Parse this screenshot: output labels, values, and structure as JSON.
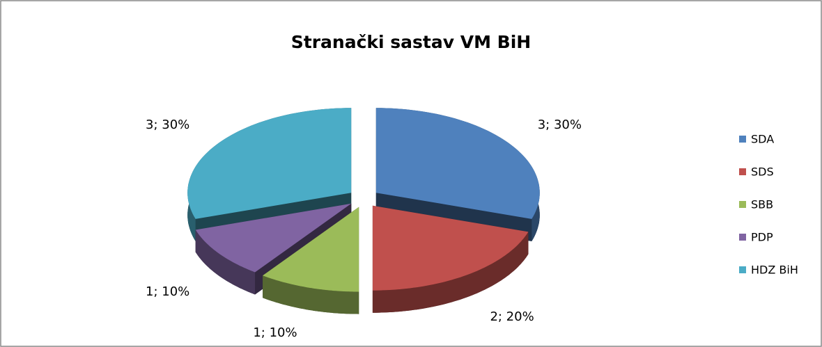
{
  "chart_data": {
    "type": "pie3d",
    "title": "Stranački sastav VM BiH",
    "categories": [
      "SDA",
      "SDS",
      "SBB",
      "PDP",
      "HDZ BiH"
    ],
    "values": [
      3,
      2,
      1,
      1,
      3
    ],
    "value_labels": [
      "3; 30%",
      "2; 20%",
      "1; 10%",
      "1; 10%",
      "3; 30%"
    ],
    "colors": [
      "#4f81bd",
      "#c0504d",
      "#9bbb59",
      "#8064a2",
      "#4bacc6"
    ],
    "legend": "right"
  }
}
